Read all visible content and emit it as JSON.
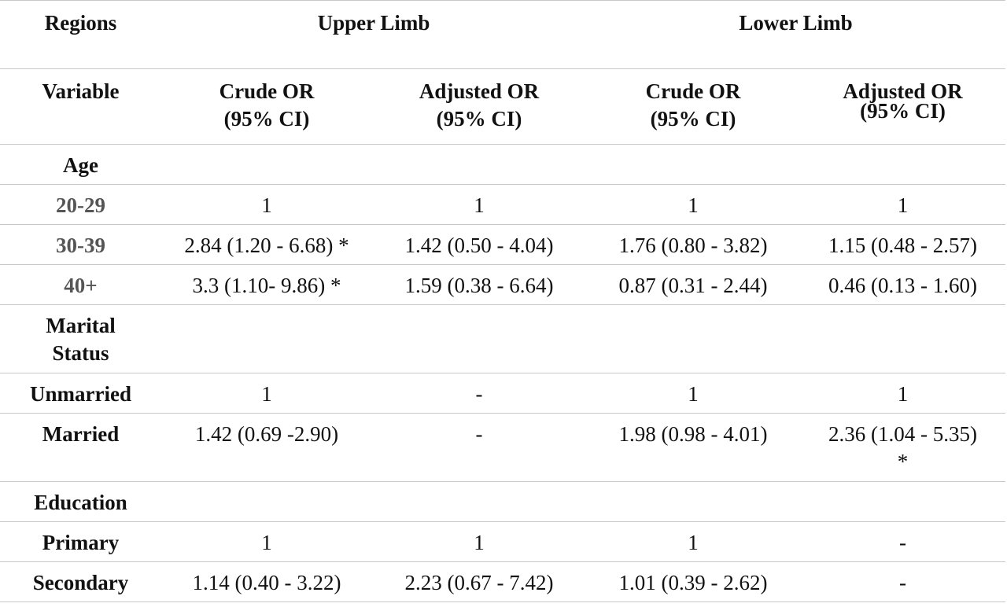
{
  "header": {
    "regions_label": "Regions",
    "upper_limb": "Upper Limb",
    "lower_limb": "Lower Limb",
    "variable_label": "Variable",
    "crude_or": "Crude OR",
    "adjusted_or": "Adjusted OR",
    "ci": "(95% CI)"
  },
  "sections": {
    "age": "Age",
    "marital": [
      "Marital",
      "Status"
    ],
    "education": "Education"
  },
  "rows": {
    "r20_29": {
      "label": "20-29",
      "c1": "1",
      "c2": "1",
      "c3": "1",
      "c4": "1"
    },
    "r30_39": {
      "label": "30-39",
      "c1": "2.84 (1.20 - 6.68) *",
      "c2": "1.42 (0.50 - 4.04)",
      "c3": "1.76 (0.80 - 3.82)",
      "c4": "1.15 (0.48 - 2.57)"
    },
    "r40": {
      "label": "40+",
      "c1": "3.3 (1.10- 9.86) *",
      "c2": "1.59 (0.38 - 6.64)",
      "c3": "0.87 (0.31 - 2.44)",
      "c4": "0.46 (0.13 - 1.60)"
    },
    "unmarried": {
      "label": "Unmarried",
      "c1": "1",
      "c2": "-",
      "c3": "1",
      "c4": "1"
    },
    "married": {
      "label": "Married",
      "c1": "1.42 (0.69 -2.90)",
      "c2": "-",
      "c3": "1.98 (0.98 - 4.01)",
      "c4": "2.36 (1.04 - 5.35)",
      "c4_mark": "*"
    },
    "primary": {
      "label": "Primary",
      "c1": "1",
      "c2": "1",
      "c3": "1",
      "c4": "-"
    },
    "secondary": {
      "label": "Secondary",
      "c1": "1.14 (0.40 - 3.22)",
      "c2": "2.23 (0.67 - 7.42)",
      "c3": "1.01 (0.39 - 2.62)",
      "c4": "-"
    }
  }
}
